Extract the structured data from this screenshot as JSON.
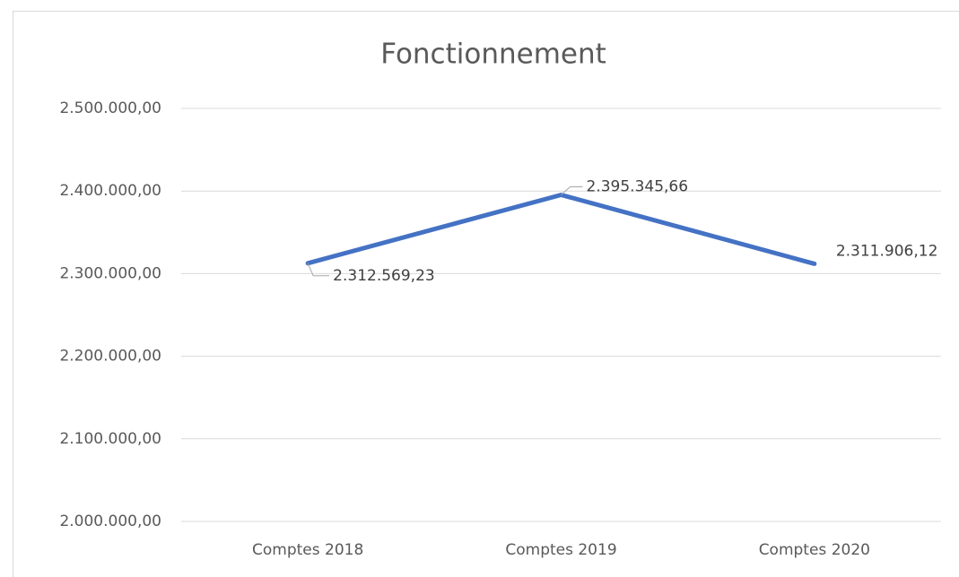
{
  "chart_data": {
    "type": "line",
    "title": "Fonctionnement",
    "categories": [
      "Comptes 2018",
      "Comptes 2019",
      "Comptes 2020"
    ],
    "series": [
      {
        "name": "Fonctionnement",
        "color": "#4472c4",
        "values": [
          2312569.23,
          2395345.66,
          2311906.12
        ],
        "value_labels": [
          "2.312.569,23",
          "2.395.345,66",
          "2.311.906,12"
        ]
      }
    ],
    "ylim": [
      2000000,
      2500000
    ],
    "yticks": [
      {
        "value": 2000000,
        "label": "2.000.000,00"
      },
      {
        "value": 2100000,
        "label": "2.100.000,00"
      },
      {
        "value": 2200000,
        "label": "2.200.000,00"
      },
      {
        "value": 2300000,
        "label": "2.300.000,00"
      },
      {
        "value": 2400000,
        "label": "2.400.000,00"
      },
      {
        "value": 2500000,
        "label": "2.500.000,00"
      }
    ],
    "grid": true
  }
}
